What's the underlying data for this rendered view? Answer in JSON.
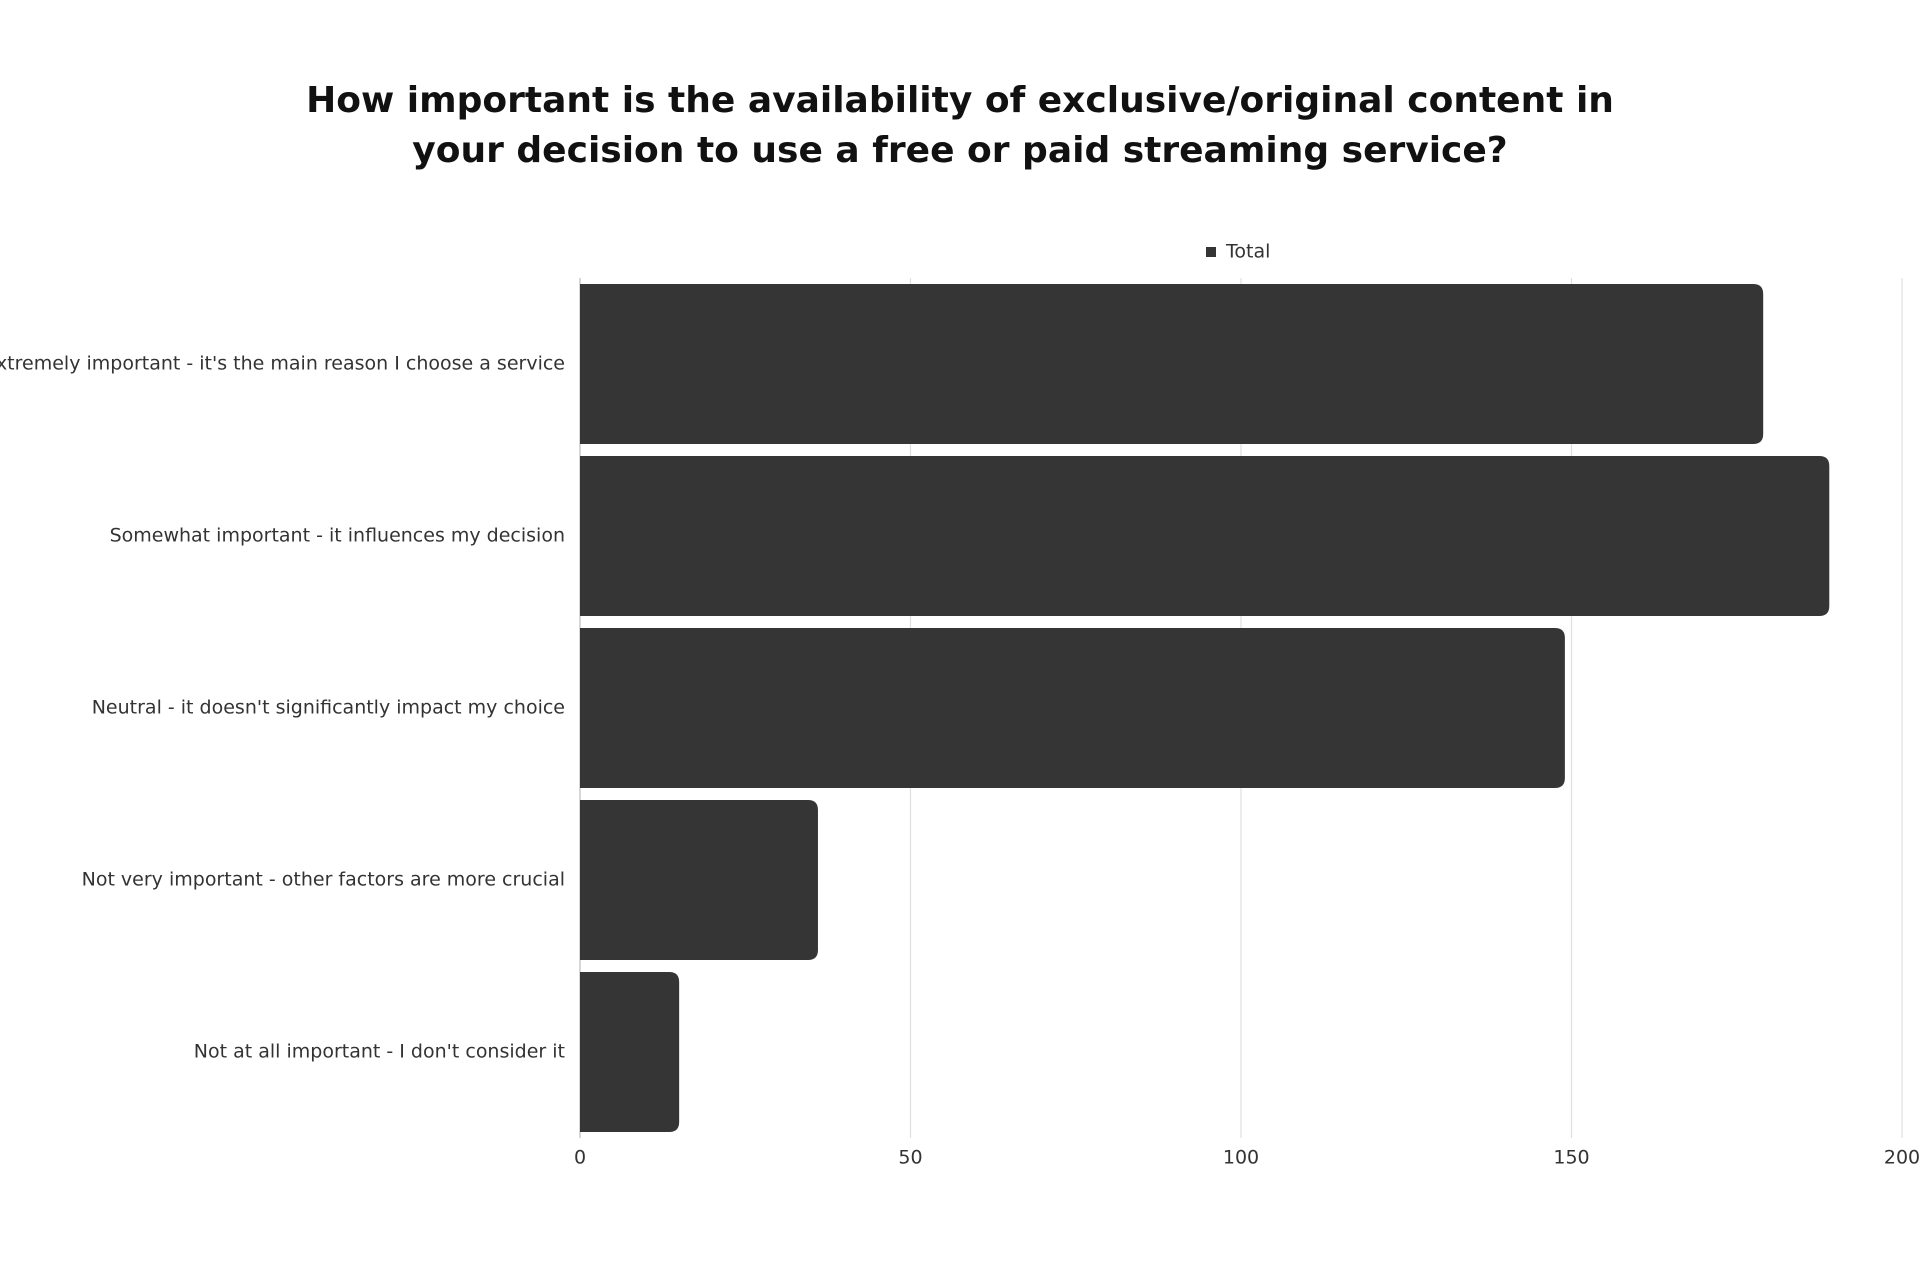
{
  "chart_data": {
    "type": "hbar",
    "title": "How important is the availability of exclusive/original content in your decision to use a free or paid streaming service?",
    "categories": [
      "Extremely important - it's the main reason I choose a service",
      "Somewhat important - it influences my decision",
      "Neutral - it doesn't significantly impact my choice",
      "Not very important - other factors are more crucial",
      "Not at all important - I don't consider it"
    ],
    "series": [
      {
        "name": "Total",
        "color": "#353535",
        "values": [
          179,
          189,
          149,
          36,
          15
        ]
      }
    ],
    "xlim": [
      0,
      200
    ],
    "xticks": [
      0,
      50,
      100,
      150,
      200
    ],
    "grid": true,
    "legend": "top"
  }
}
